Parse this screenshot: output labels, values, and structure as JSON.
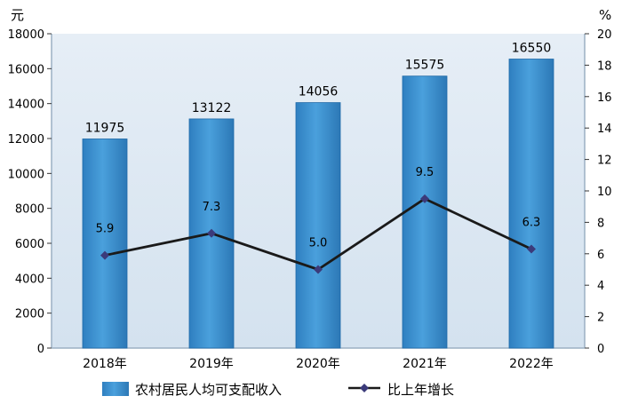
{
  "chart_data": {
    "type": "bar",
    "categories": [
      "2018年",
      "2019年",
      "2020年",
      "2021年",
      "2022年"
    ],
    "left_axis": {
      "unit": "元",
      "ylim": [
        0,
        18000
      ],
      "ticks": [
        "0",
        "2000",
        "4000",
        "6000",
        "8000",
        "10000",
        "12000",
        "14000",
        "16000",
        "18000"
      ]
    },
    "right_axis": {
      "unit": "%",
      "ylim": [
        0,
        20
      ],
      "ticks": [
        "0",
        "2",
        "4",
        "6",
        "8",
        "10",
        "12",
        "14",
        "16",
        "18",
        "20"
      ]
    },
    "series": [
      {
        "name": "农村居民人均可支配收入",
        "type": "bar",
        "axis": "left",
        "color": "#3d8fcf",
        "values": [
          11975,
          13122,
          14056,
          15575,
          16550
        ],
        "labels": [
          "11975",
          "13122",
          "14056",
          "15575",
          "16550"
        ]
      },
      {
        "name": "比上年增长",
        "type": "line",
        "axis": "right",
        "color": "#1a1a1a",
        "marker_color": "#3b3a7a",
        "values": [
          5.9,
          7.3,
          5.0,
          9.5,
          6.3
        ],
        "labels": [
          "5.9",
          "7.3",
          "5.0",
          "9.5",
          "6.3"
        ]
      }
    ],
    "grid": false,
    "legend_position": "bottom",
    "plot_background": "#dfe9f3"
  }
}
